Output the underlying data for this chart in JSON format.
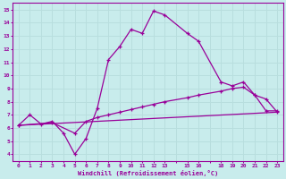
{
  "xlabel": "Windchill (Refroidissement éolien,°C)",
  "ylabel": "",
  "bg_color": "#c8ecec",
  "grid_color": "#b8dede",
  "line_color": "#990099",
  "yticks": [
    4,
    5,
    6,
    7,
    8,
    9,
    10,
    11,
    12,
    13,
    14,
    15
  ],
  "xlim": [
    -0.5,
    23.5
  ],
  "ylim": [
    3.5,
    15.5
  ],
  "line1_x": [
    0,
    1,
    2,
    3,
    4,
    5,
    6,
    7,
    8,
    9,
    10,
    11,
    12,
    13,
    15,
    16,
    18,
    19,
    20,
    21,
    22,
    23
  ],
  "line1_y": [
    6.2,
    7.0,
    6.3,
    6.5,
    5.6,
    4.0,
    5.2,
    7.5,
    11.2,
    12.2,
    13.5,
    13.2,
    14.9,
    14.6,
    13.2,
    12.6,
    9.5,
    9.2,
    9.5,
    8.5,
    8.2,
    7.2
  ],
  "line2_x": [
    0,
    3,
    5,
    6,
    7,
    8,
    9,
    10,
    11,
    12,
    13,
    15,
    16,
    18,
    19,
    20,
    21,
    22,
    23
  ],
  "line2_y": [
    6.2,
    6.4,
    5.6,
    6.5,
    6.8,
    7.0,
    7.2,
    7.4,
    7.6,
    7.8,
    8.0,
    8.3,
    8.5,
    8.8,
    9.0,
    9.1,
    8.5,
    7.3,
    7.3
  ],
  "line3_x": [
    0,
    23
  ],
  "line3_y": [
    6.2,
    7.2
  ],
  "xtick_positions": [
    0,
    1,
    2,
    3,
    4,
    5,
    6,
    7,
    8,
    9,
    10,
    11,
    12,
    13,
    15,
    16,
    18,
    19,
    20,
    21,
    22,
    23
  ],
  "xtick_labels": [
    "0",
    "1",
    "2",
    "3",
    "4",
    "5",
    "6",
    "7",
    "8",
    "9",
    "10",
    "11",
    "12",
    "13",
    "15",
    "16",
    "18",
    "19",
    "20",
    "21",
    "22",
    "23"
  ]
}
